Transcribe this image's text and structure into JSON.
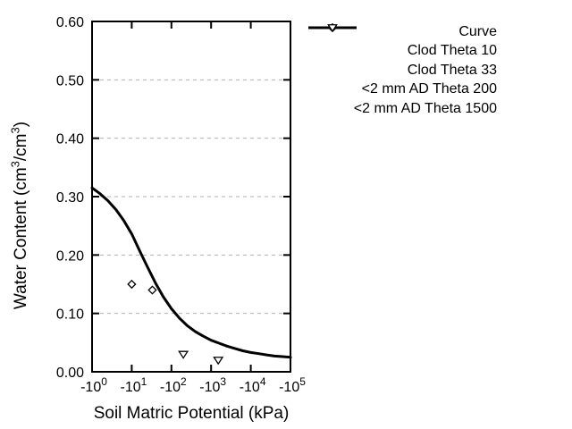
{
  "chart_data": {
    "type": "line",
    "title": "",
    "xlabel": "Soil Matric Potential (kPa)",
    "ylabel": "Water Content (cm³/cm³)",
    "ylabel_parts": [
      {
        "t": "Water Content (cm"
      },
      {
        "t": "3",
        "sup": true
      },
      {
        "t": "/cm"
      },
      {
        "t": "3",
        "sup": true
      },
      {
        "t": ")"
      }
    ],
    "x_axis": {
      "scale": "negative-log10",
      "decades": 5,
      "ticks": [
        {
          "base": "-10",
          "exp": "0"
        },
        {
          "base": "-10",
          "exp": "1"
        },
        {
          "base": "-10",
          "exp": "2"
        },
        {
          "base": "-10",
          "exp": "3"
        },
        {
          "base": "-10",
          "exp": "4"
        },
        {
          "base": "-10",
          "exp": "5"
        }
      ]
    },
    "y_axis": {
      "min": 0.0,
      "max": 0.6,
      "ticks": [
        "0.00",
        "0.10",
        "0.20",
        "0.30",
        "0.40",
        "0.50",
        "0.60"
      ]
    },
    "grid": {
      "horizontal_dashed": true,
      "vertical": false,
      "color": "#b0b0b0"
    },
    "colors": {
      "line": "#000000",
      "marker_stroke": "#000000",
      "marker_fill": "#ffffff",
      "text": "#000000"
    },
    "series": [
      {
        "name": "Curve",
        "type": "line",
        "points_logx_y": [
          [
            0.0,
            0.315
          ],
          [
            0.2,
            0.305
          ],
          [
            0.4,
            0.293
          ],
          [
            0.6,
            0.278
          ],
          [
            0.8,
            0.259
          ],
          [
            1.0,
            0.236
          ],
          [
            1.2,
            0.207
          ],
          [
            1.4,
            0.179
          ],
          [
            1.6,
            0.152
          ],
          [
            1.8,
            0.128
          ],
          [
            2.0,
            0.108
          ],
          [
            2.2,
            0.092
          ],
          [
            2.4,
            0.079
          ],
          [
            2.6,
            0.069
          ],
          [
            2.8,
            0.061
          ],
          [
            3.0,
            0.054
          ],
          [
            3.2,
            0.049
          ],
          [
            3.4,
            0.044
          ],
          [
            3.6,
            0.04
          ],
          [
            3.8,
            0.036
          ],
          [
            4.0,
            0.033
          ],
          [
            4.2,
            0.031
          ],
          [
            4.4,
            0.029
          ],
          [
            4.6,
            0.027
          ],
          [
            4.8,
            0.026
          ],
          [
            5.0,
            0.025
          ]
        ]
      },
      {
        "name": "Clod Theta 10",
        "type": "scatter",
        "marker": "diamond",
        "points": [
          {
            "x": -10,
            "logx": 1.0,
            "y": 0.15
          }
        ]
      },
      {
        "name": "Clod Theta 33",
        "type": "scatter",
        "marker": "diamond",
        "points": [
          {
            "x": -33,
            "logx": 1.52,
            "y": 0.14
          }
        ]
      },
      {
        "name": "<2 mm AD Theta 200",
        "type": "scatter",
        "marker": "triangle-down",
        "points": [
          {
            "x": -200,
            "logx": 2.3,
            "y": 0.03
          }
        ]
      },
      {
        "name": "<2 mm AD Theta 1500",
        "type": "scatter",
        "marker": "triangle-down",
        "points": [
          {
            "x": -1500,
            "logx": 3.18,
            "y": 0.02
          }
        ]
      }
    ],
    "legend": {
      "position": "top-right",
      "entries": [
        {
          "label": "Curve",
          "symbol": "line"
        },
        {
          "label": "Clod Theta 10",
          "symbol": "diamond"
        },
        {
          "label": "Clod Theta 33",
          "symbol": "diamond"
        },
        {
          "label": "<2 mm AD Theta 200",
          "symbol": "triangle-down"
        },
        {
          "label": "<2 mm AD Theta 1500",
          "symbol": "triangle-down"
        }
      ]
    }
  }
}
